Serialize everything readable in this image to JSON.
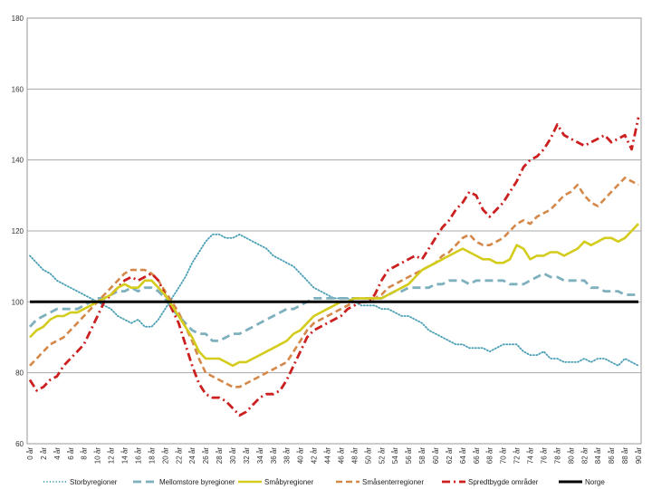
{
  "chart_data": {
    "type": "line",
    "title": "",
    "xlabel": "",
    "ylabel": "",
    "ylim": [
      60,
      180
    ],
    "yticks": [
      60,
      80,
      100,
      120,
      140,
      160,
      180
    ],
    "grid": "horizontal",
    "legend_position": "bottom",
    "categories": [
      "0 år",
      "1 år",
      "2 år",
      "3 år",
      "4 år",
      "5 år",
      "6 år",
      "7 år",
      "8 år",
      "9 år",
      "10 år",
      "11 år",
      "12 år",
      "13 år",
      "14 år",
      "15 år",
      "16 år",
      "17 år",
      "18 år",
      "19 år",
      "20 år",
      "21 år",
      "22 år",
      "23 år",
      "24 år",
      "25 år",
      "26 år",
      "27 år",
      "28 år",
      "29 år",
      "30 år",
      "31 år",
      "32 år",
      "33 år",
      "34 år",
      "35 år",
      "36 år",
      "37 år",
      "38 år",
      "39 år",
      "40 år",
      "41 år",
      "42 år",
      "43 år",
      "44 år",
      "45 år",
      "46 år",
      "47 år",
      "48 år",
      "49 år",
      "50 år",
      "51 år",
      "52 år",
      "53 år",
      "54 år",
      "55 år",
      "56 år",
      "57 år",
      "58 år",
      "59 år",
      "60 år",
      "61 år",
      "62 år",
      "63 år",
      "64 år",
      "65 år",
      "66 år",
      "67 år",
      "68 år",
      "69 år",
      "70 år",
      "71 år",
      "72 år",
      "73 år",
      "74 år",
      "75 år",
      "76 år",
      "77 år",
      "78 år",
      "79 år",
      "80 år",
      "81 år",
      "82 år",
      "83 år",
      "84 år",
      "85 år",
      "86 år",
      "87 år",
      "88 år",
      "89 år",
      "90 år"
    ],
    "xtick_labels": [
      "0 år",
      "2 år",
      "4 år",
      "6 år",
      "8 år",
      "10 år",
      "12 år",
      "14 år",
      "16 år",
      "18 år",
      "20 år",
      "22 år",
      "24 år",
      "26 år",
      "28 år",
      "30 år",
      "32 år",
      "34 år",
      "36 år",
      "38 år",
      "40 år",
      "42 år",
      "44 år",
      "46 år",
      "48 år",
      "50 år",
      "52 år",
      "54 år",
      "56 år",
      "58 år",
      "60 år",
      "62 år",
      "64 år",
      "66 år",
      "68 år",
      "70 år",
      "72 år",
      "74 år",
      "76 år",
      "78 år",
      "80 år",
      "82 år",
      "84 år",
      "86 år",
      "88 år",
      "90 år"
    ],
    "series": [
      {
        "name": "Storbyregioner",
        "color": "#4a9fb5",
        "dash": "dotted",
        "values": [
          113,
          111,
          109,
          108,
          106,
          105,
          104,
          103,
          102,
          101,
          100,
          99,
          98,
          96,
          95,
          94,
          95,
          93,
          93,
          95,
          98,
          101,
          104,
          107,
          111,
          114,
          117,
          119,
          119,
          118,
          118,
          119,
          118,
          117,
          116,
          115,
          113,
          112,
          111,
          110,
          108,
          106,
          104,
          103,
          102,
          101,
          101,
          101,
          100,
          99,
          99,
          99,
          98,
          98,
          97,
          96,
          96,
          95,
          94,
          92,
          91,
          90,
          89,
          88,
          88,
          87,
          87,
          87,
          86,
          87,
          88,
          88,
          88,
          86,
          85,
          85,
          86,
          84,
          84,
          83,
          83,
          83,
          84,
          83,
          84,
          84,
          83,
          82,
          84,
          83,
          82
        ]
      },
      {
        "name": "Mellomstore byregioner",
        "color": "#7fb0bd",
        "dash": "long-dash",
        "values": [
          93,
          95,
          96,
          97,
          98,
          98,
          98,
          98,
          99,
          100,
          101,
          101,
          102,
          103,
          103,
          104,
          103,
          104,
          104,
          103,
          101,
          98,
          96,
          94,
          92,
          91,
          91,
          89,
          89,
          90,
          91,
          91,
          92,
          93,
          94,
          95,
          96,
          97,
          98,
          98,
          99,
          100,
          101,
          101,
          101,
          101,
          101,
          101,
          101,
          101,
          101,
          101,
          101,
          102,
          103,
          103,
          104,
          104,
          104,
          104,
          105,
          105,
          106,
          106,
          106,
          105,
          106,
          106,
          106,
          106,
          106,
          105,
          105,
          105,
          106,
          107,
          108,
          107,
          107,
          106,
          106,
          106,
          106,
          104,
          104,
          103,
          103,
          103,
          102,
          102,
          102
        ]
      },
      {
        "name": "Småbyregioner",
        "color": "#d4cc1c",
        "dash": "solid",
        "values": [
          90,
          92,
          93,
          95,
          96,
          96,
          97,
          97,
          98,
          99,
          100,
          101,
          102,
          104,
          105,
          104,
          104,
          106,
          106,
          104,
          102,
          99,
          96,
          93,
          90,
          86,
          84,
          84,
          84,
          83,
          82,
          83,
          83,
          84,
          85,
          86,
          87,
          88,
          89,
          91,
          92,
          94,
          96,
          97,
          98,
          99,
          100,
          100,
          101,
          101,
          101,
          101,
          101,
          102,
          103,
          104,
          105,
          107,
          109,
          110,
          111,
          112,
          113,
          114,
          115,
          114,
          113,
          112,
          112,
          111,
          111,
          112,
          116,
          115,
          112,
          113,
          113,
          114,
          114,
          113,
          114,
          115,
          117,
          116,
          117,
          118,
          118,
          117,
          118,
          120,
          122
        ]
      },
      {
        "name": "Småsenterregioner",
        "color": "#d4894a",
        "dash": "dashed",
        "values": [
          82,
          84,
          86,
          88,
          89,
          90,
          92,
          94,
          96,
          98,
          100,
          102,
          104,
          106,
          108,
          109,
          109,
          109,
          108,
          106,
          103,
          100,
          97,
          93,
          89,
          84,
          80,
          79,
          78,
          77,
          76,
          76,
          77,
          78,
          79,
          80,
          81,
          82,
          83,
          86,
          89,
          92,
          94,
          95,
          96,
          97,
          98,
          99,
          100,
          100,
          100,
          101,
          102,
          104,
          105,
          106,
          107,
          108,
          109,
          110,
          111,
          113,
          114,
          116,
          118,
          119,
          117,
          116,
          116,
          117,
          118,
          120,
          122,
          123,
          122,
          124,
          125,
          126,
          128,
          130,
          131,
          133,
          130,
          128,
          127,
          129,
          131,
          133,
          135,
          134,
          133
        ]
      },
      {
        "name": "Spredtbygde områder",
        "color": "#cc1f1f",
        "dash": "dash-dot",
        "values": [
          78,
          75,
          76,
          78,
          79,
          82,
          84,
          86,
          88,
          92,
          96,
          100,
          102,
          104,
          106,
          107,
          106,
          107,
          108,
          106,
          102,
          98,
          94,
          88,
          82,
          77,
          74,
          73,
          73,
          72,
          70,
          68,
          69,
          71,
          73,
          74,
          74,
          75,
          78,
          82,
          86,
          90,
          92,
          93,
          94,
          95,
          96,
          98,
          99,
          100,
          100,
          102,
          106,
          109,
          110,
          111,
          112,
          113,
          112,
          115,
          118,
          121,
          123,
          126,
          128,
          131,
          130,
          126,
          124,
          126,
          128,
          131,
          134,
          138,
          140,
          141,
          143,
          146,
          150,
          147,
          146,
          145,
          144,
          145,
          146,
          147,
          145,
          146,
          147,
          143,
          152
        ]
      },
      {
        "name": "Norge",
        "color": "#000000",
        "dash": "solid",
        "values": [
          100,
          100,
          100,
          100,
          100,
          100,
          100,
          100,
          100,
          100,
          100,
          100,
          100,
          100,
          100,
          100,
          100,
          100,
          100,
          100,
          100,
          100,
          100,
          100,
          100,
          100,
          100,
          100,
          100,
          100,
          100,
          100,
          100,
          100,
          100,
          100,
          100,
          100,
          100,
          100,
          100,
          100,
          100,
          100,
          100,
          100,
          100,
          100,
          100,
          100,
          100,
          100,
          100,
          100,
          100,
          100,
          100,
          100,
          100,
          100,
          100,
          100,
          100,
          100,
          100,
          100,
          100,
          100,
          100,
          100,
          100,
          100,
          100,
          100,
          100,
          100,
          100,
          100,
          100,
          100,
          100,
          100,
          100,
          100,
          100,
          100,
          100,
          100,
          100,
          100,
          100
        ]
      }
    ]
  }
}
